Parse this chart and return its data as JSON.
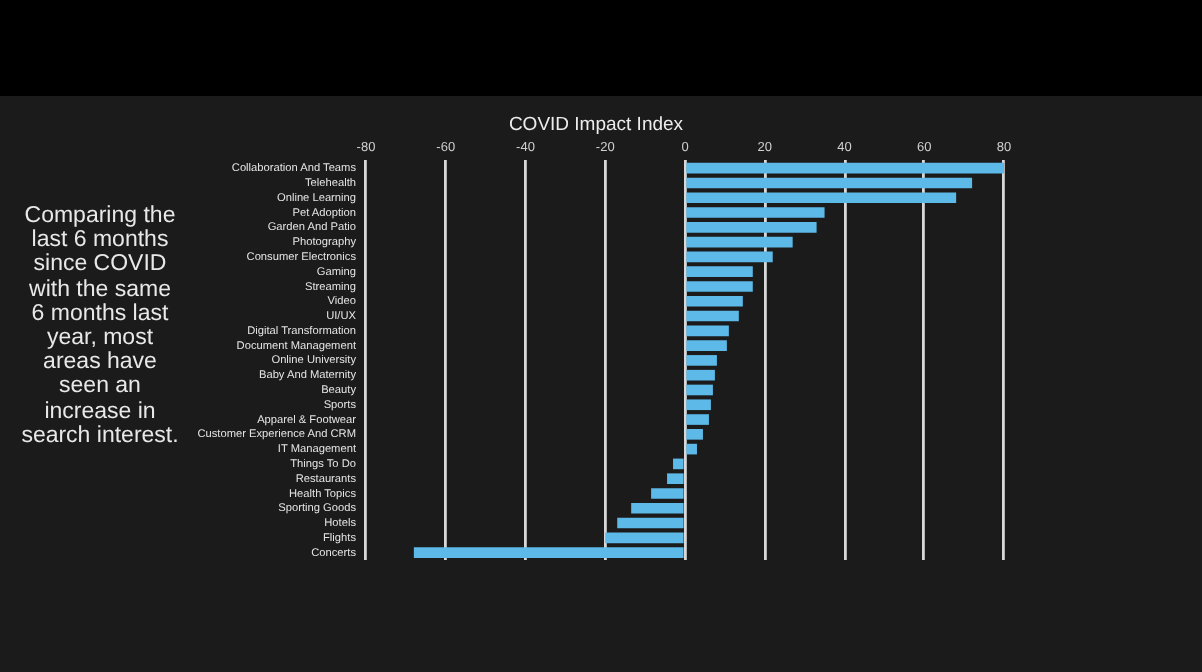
{
  "chart_data": {
    "type": "bar",
    "orientation": "horizontal",
    "title": "COVID Impact Index",
    "categories": [
      "Collaboration And Teams",
      "Telehealth",
      "Online Learning",
      "Pet Adoption",
      "Garden And Patio",
      "Photography",
      "Consumer Electronics",
      "Gaming",
      "Streaming",
      "Video",
      "UI/UX",
      "Digital Transformation",
      "Document Management",
      "Online University",
      "Baby And Maternity",
      "Beauty",
      "Sports",
      "Apparel & Footwear",
      "Customer Experience And CRM",
      "IT Management",
      "Things To Do",
      "Restaurants",
      "Health Topics",
      "Sporting Goods",
      "Hotels",
      "Flights",
      "Concerts"
    ],
    "values": [
      80,
      72,
      68,
      35,
      33,
      27,
      22,
      17,
      17,
      14.5,
      13.5,
      11,
      10.5,
      8,
      7.5,
      7,
      6.5,
      6,
      4.5,
      3,
      -3,
      -4.5,
      -8.5,
      -13.5,
      -17,
      -20,
      -68
    ],
    "color": "#5cb9e8",
    "xlim": [
      -80,
      80
    ],
    "xticks": [
      -80,
      -60,
      -40,
      -20,
      0,
      20,
      40,
      60,
      80
    ],
    "grid": "x",
    "annotations": [
      "Comparing the\nlast 6 months\nsince COVID\nwith the same\n6 months last\nyear, most\nareas have\nseen an\nincrease in\nsearch interest."
    ]
  }
}
